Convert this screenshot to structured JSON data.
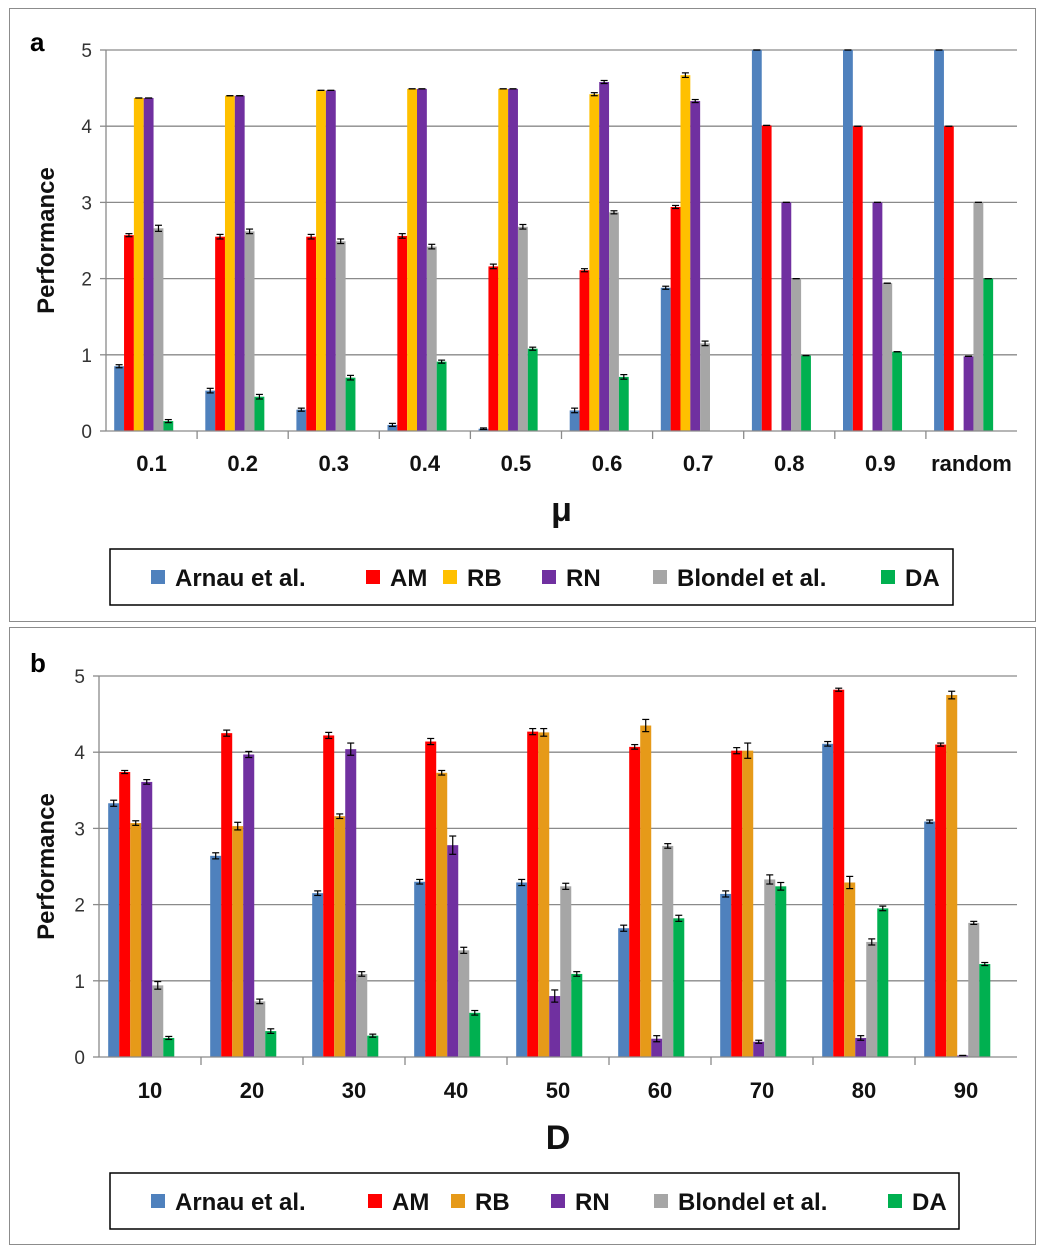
{
  "chart_data": [
    {
      "type": "bar",
      "panel_label": "a",
      "xlabel": "μ",
      "ylabel": "Performance",
      "ylim": [
        0,
        5
      ],
      "yticks": [
        0,
        1,
        2,
        3,
        4,
        5
      ],
      "grid": true,
      "legend_position": "bottom",
      "categories": [
        "0.1",
        "0.2",
        "0.3",
        "0.4",
        "0.5",
        "0.6",
        "0.7",
        "0.8",
        "0.9",
        "random"
      ],
      "series": [
        {
          "name": "Arnau et al.",
          "color": "#4f81bd",
          "values": [
            0.85,
            0.53,
            0.28,
            0.08,
            0.03,
            0.27,
            1.88,
            5.0,
            5.0,
            5.0
          ],
          "errors": [
            0.02,
            0.03,
            0.02,
            0.02,
            0.01,
            0.03,
            0.02,
            0.0,
            0.0,
            0.0
          ]
        },
        {
          "name": "AM",
          "color": "#ff0000",
          "values": [
            2.57,
            2.55,
            2.55,
            2.56,
            2.16,
            2.11,
            2.94,
            4.01,
            4.0,
            4.0
          ],
          "errors": [
            0.02,
            0.03,
            0.03,
            0.03,
            0.03,
            0.02,
            0.02,
            0.0,
            0.0,
            0.0
          ]
        },
        {
          "name": "RB",
          "color": "#ffc000",
          "values": [
            4.37,
            4.4,
            4.47,
            4.49,
            4.49,
            4.42,
            4.67,
            0.0,
            0.0,
            0.0
          ],
          "errors": [
            0.0,
            0.0,
            0.0,
            0.0,
            0.0,
            0.02,
            0.03,
            0.0,
            0.0,
            0.0
          ]
        },
        {
          "name": "RN",
          "color": "#7030a0",
          "values": [
            4.37,
            4.4,
            4.47,
            4.49,
            4.49,
            4.58,
            4.33,
            3.0,
            3.0,
            0.98
          ],
          "errors": [
            0.0,
            0.0,
            0.0,
            0.0,
            0.0,
            0.02,
            0.02,
            0.0,
            0.0,
            0.0
          ]
        },
        {
          "name": "Blondel et al.",
          "color": "#a6a6a6",
          "values": [
            2.66,
            2.62,
            2.49,
            2.42,
            2.68,
            2.87,
            1.15,
            2.0,
            1.94,
            3.0
          ],
          "errors": [
            0.04,
            0.03,
            0.03,
            0.03,
            0.03,
            0.02,
            0.03,
            0.0,
            0.0,
            0.0
          ]
        },
        {
          "name": "DA",
          "color": "#00b050",
          "values": [
            0.13,
            0.45,
            0.7,
            0.91,
            1.08,
            0.71,
            0.0,
            0.99,
            1.04,
            2.0
          ],
          "errors": [
            0.02,
            0.03,
            0.03,
            0.02,
            0.02,
            0.03,
            0.0,
            0.0,
            0.0,
            0.0
          ]
        }
      ]
    },
    {
      "type": "bar",
      "panel_label": "b",
      "xlabel": "D",
      "ylabel": "Performance",
      "ylim": [
        0,
        5
      ],
      "yticks": [
        0,
        1,
        2,
        3,
        4,
        5
      ],
      "grid": true,
      "legend_position": "bottom",
      "categories": [
        "10",
        "20",
        "30",
        "40",
        "50",
        "60",
        "70",
        "80",
        "90"
      ],
      "series": [
        {
          "name": "Arnau et al.",
          "color": "#4f81bd",
          "values": [
            3.33,
            2.64,
            2.15,
            2.3,
            2.29,
            1.69,
            2.14,
            4.11,
            3.09
          ],
          "errors": [
            0.04,
            0.04,
            0.03,
            0.03,
            0.04,
            0.04,
            0.04,
            0.03,
            0.02
          ]
        },
        {
          "name": "AM",
          "color": "#ff0000",
          "values": [
            3.74,
            4.25,
            4.22,
            4.14,
            4.27,
            4.07,
            4.02,
            4.82,
            4.1
          ],
          "errors": [
            0.02,
            0.04,
            0.04,
            0.04,
            0.04,
            0.03,
            0.04,
            0.02,
            0.02
          ]
        },
        {
          "name": "RB",
          "color": "#e69a19",
          "values": [
            3.07,
            3.03,
            3.16,
            3.73,
            4.26,
            4.35,
            4.02,
            2.29,
            4.75
          ],
          "errors": [
            0.03,
            0.05,
            0.03,
            0.03,
            0.05,
            0.08,
            0.1,
            0.08,
            0.05
          ]
        },
        {
          "name": "RN",
          "color": "#7030a0",
          "values": [
            3.61,
            3.97,
            4.04,
            2.78,
            0.8,
            0.24,
            0.2,
            0.25,
            0.02
          ],
          "errors": [
            0.03,
            0.04,
            0.08,
            0.12,
            0.08,
            0.04,
            0.02,
            0.03,
            0.0
          ]
        },
        {
          "name": "Blondel et al.",
          "color": "#a6a6a6",
          "values": [
            0.94,
            0.73,
            1.09,
            1.4,
            2.24,
            2.77,
            2.33,
            1.51,
            1.76
          ],
          "errors": [
            0.05,
            0.03,
            0.03,
            0.04,
            0.04,
            0.03,
            0.06,
            0.04,
            0.02
          ]
        },
        {
          "name": "DA",
          "color": "#00b050",
          "values": [
            0.25,
            0.34,
            0.28,
            0.58,
            1.09,
            1.82,
            2.24,
            1.95,
            1.22
          ],
          "errors": [
            0.02,
            0.03,
            0.02,
            0.03,
            0.03,
            0.04,
            0.05,
            0.03,
            0.02
          ]
        }
      ]
    }
  ]
}
